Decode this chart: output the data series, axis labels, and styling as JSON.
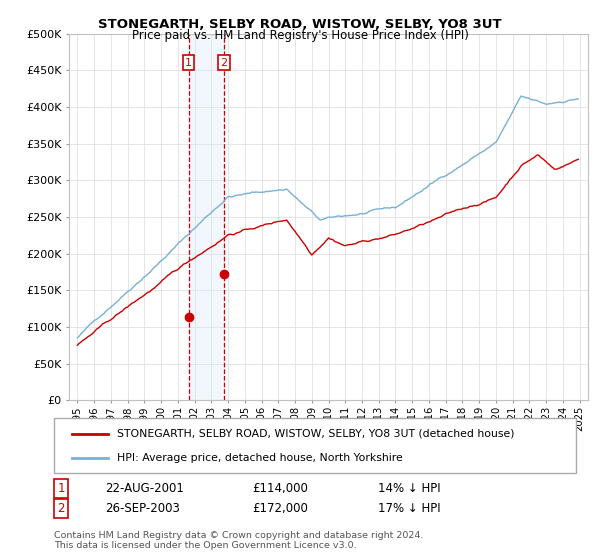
{
  "title": "STONEGARTH, SELBY ROAD, WISTOW, SELBY, YO8 3UT",
  "subtitle": "Price paid vs. HM Land Registry's House Price Index (HPI)",
  "legend_line1": "STONEGARTH, SELBY ROAD, WISTOW, SELBY, YO8 3UT (detached house)",
  "legend_line2": "HPI: Average price, detached house, North Yorkshire",
  "footnote": "Contains HM Land Registry data © Crown copyright and database right 2024.\nThis data is licensed under the Open Government Licence v3.0.",
  "sale1_date": "22-AUG-2001",
  "sale1_price": "£114,000",
  "sale1_hpi": "14% ↓ HPI",
  "sale1_x": 2001.64,
  "sale1_y": 114000,
  "sale2_date": "26-SEP-2003",
  "sale2_price": "£172,000",
  "sale2_hpi": "17% ↓ HPI",
  "sale2_x": 2003.73,
  "sale2_y": 172000,
  "hpi_color": "#7ab0d4",
  "price_color": "#cc0000",
  "vline_color": "#cc0000",
  "shade_color": "#d8eaf7",
  "ylim": [
    0,
    500000
  ],
  "yticks": [
    0,
    50000,
    100000,
    150000,
    200000,
    250000,
    300000,
    350000,
    400000,
    450000,
    500000
  ],
  "xlim": [
    1994.5,
    2025.5
  ],
  "grid_color": "#e0e0e0",
  "bg_color": "#ffffff"
}
